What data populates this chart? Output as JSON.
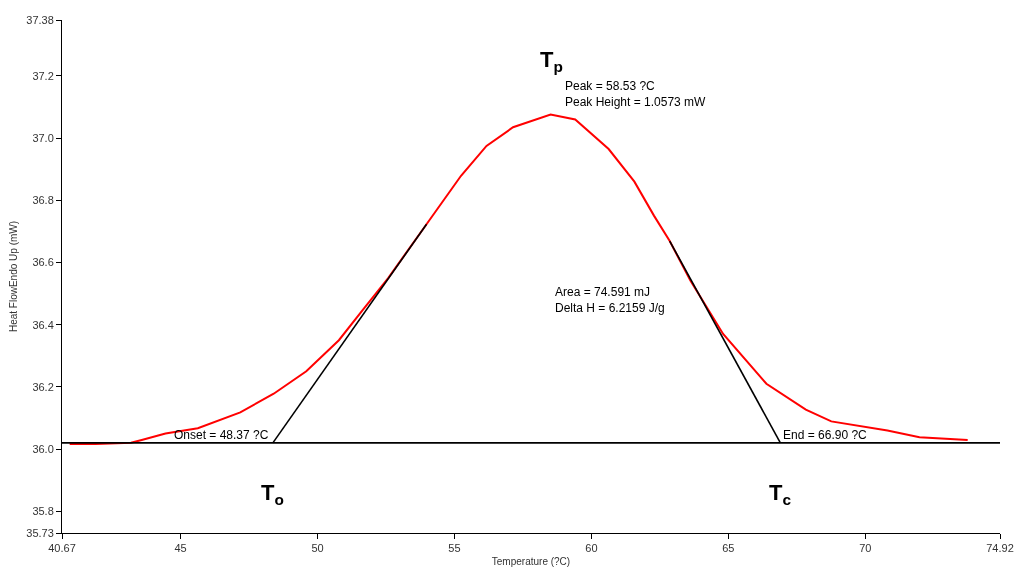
{
  "chart_data": {
    "type": "line",
    "xlabel": "Temperature (?C)",
    "ylabel": "Heat FlowEndo Up (mW)",
    "xlim": [
      40.67,
      74.92
    ],
    "xticks": [
      40.67,
      45,
      50,
      55,
      60,
      65,
      70,
      74.92
    ],
    "ylim": [
      35.73,
      37.38
    ],
    "yticks": [
      35.73,
      35.8,
      {
        "value": 36.0,
        "label": "36.0"
      },
      36.2,
      36.4,
      36.6,
      36.8,
      {
        "value": 37.0,
        "label": "37.0"
      },
      37.2,
      37.38
    ],
    "series": [
      {
        "color": "#ff0000",
        "x": [
          40.95,
          41.9,
          43.19,
          43.58,
          44.45,
          45.63,
          47.18,
          48.4,
          49.59,
          50.78,
          51.64,
          52.58,
          53.98,
          55.24,
          56.17,
          57.14,
          58.51,
          59.41,
          60.63,
          61.57,
          62.29,
          62.86,
          63.62,
          64.81,
          66.39,
          67.83,
          68.76,
          70.81,
          71.98,
          73.74
        ],
        "values": [
          36.016,
          36.016,
          36.02,
          36.029,
          36.05,
          36.067,
          36.118,
          36.178,
          36.25,
          36.35,
          36.446,
          36.55,
          36.723,
          36.879,
          36.975,
          37.035,
          37.076,
          37.06,
          36.965,
          36.86,
          36.75,
          36.669,
          36.541,
          36.37,
          36.21,
          36.127,
          36.089,
          36.06,
          36.038,
          36.029
        ]
      },
      {
        "color": "#000000",
        "x": [
          40.67,
          74.92
        ],
        "values": [
          36.02,
          36.02
        ]
      },
      {
        "color": "#000000",
        "x": [
          48.37,
          53.98
        ],
        "values": [
          36.02,
          36.723
        ]
      },
      {
        "color": "#000000",
        "x": [
          62.86,
          66.9
        ],
        "values": [
          36.669,
          36.02
        ]
      }
    ],
    "annotations": [
      {
        "text": "Peak = 58.53 ?C\nPeak Height = 1.0573 mW",
        "x": 58.53,
        "y": 37.076
      },
      {
        "text": "Onset = 48.37 ?C",
        "x": 48.37,
        "y": 36.02
      },
      {
        "text": "End = 66.90 ?C",
        "x": 66.9,
        "y": 36.02
      },
      "Area = 74.591 mJ\nDelta H = 6.2159 J/g",
      {
        "text": "T$_{p}$",
        "x": 58.53,
        "y": 37.076
      },
      {
        "text": "T$_{o}$",
        "x": 48.37,
        "y": 36.02
      },
      {
        "text": "T$_{c}$",
        "x": 66.9,
        "y": 36.02
      }
    ]
  }
}
